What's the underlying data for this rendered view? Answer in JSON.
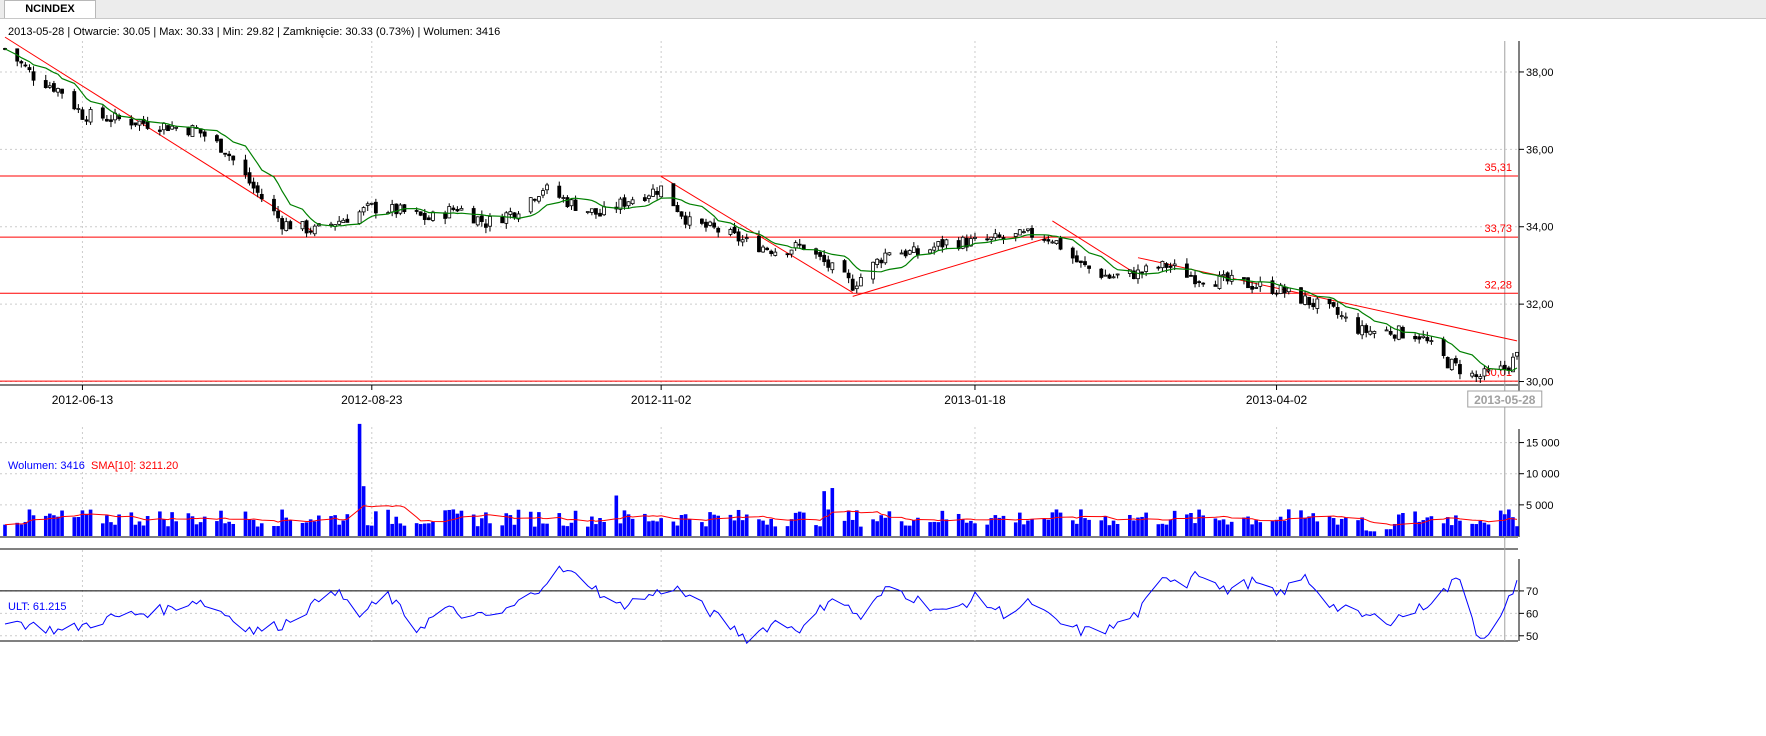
{
  "tab": {
    "label": "NCINDEX"
  },
  "header": {
    "info": "2013-05-28 | Otwarcie: 30.05 | Max: 30.33 | Min: 29.82 | Zamknięcie: 30.33 (0.73%)  | Wolumen: 3416"
  },
  "colors": {
    "candle": "#000000",
    "sma": "#008000",
    "trend": "#ff0000",
    "volume": "#0000ff",
    "vol_sma": "#ff0000",
    "ult": "#0000ff",
    "grid": "#cccccc",
    "level": "#ff0000"
  },
  "chart_data": [
    {
      "type": "candlestick",
      "title": "NCINDEX",
      "x_range": [
        "2012-05-25",
        "2013-05-31"
      ],
      "ylim": [
        29.6,
        38.8
      ],
      "y_ticks": [
        "38,00",
        "36,00",
        "34,00",
        "32,00",
        "30,00"
      ],
      "x_ticks": [
        "2012-06-13",
        "2012-08-23",
        "2012-11-02",
        "2013-01-18",
        "2013-04-02"
      ],
      "current_date_label": "2013-05-28",
      "grid": true,
      "horizontal_levels": [
        {
          "value": 35.31,
          "label": "35,31"
        },
        {
          "value": 33.73,
          "label": "33,73"
        },
        {
          "value": 32.28,
          "label": "32,28"
        },
        {
          "value": 30.01,
          "label": "30,01"
        }
      ],
      "trendlines": [
        {
          "from": [
            "2012-05-25",
            38.9
          ],
          "to": [
            "2012-08-09",
            33.85
          ]
        },
        {
          "from": [
            "2012-11-02",
            35.3
          ],
          "to": [
            "2012-12-19",
            32.3
          ]
        },
        {
          "from": [
            "2012-12-19",
            32.2
          ],
          "to": [
            "2013-02-06",
            33.75
          ]
        },
        {
          "from": [
            "2013-02-06",
            34.15
          ],
          "to": [
            "2013-02-27",
            32.75
          ]
        },
        {
          "from": [
            "2013-02-27",
            33.2
          ],
          "to": [
            "2013-05-31",
            31.05
          ]
        }
      ],
      "close_anchors": [
        [
          "2012-05-25",
          38.6
        ],
        [
          "2012-06-01",
          37.9
        ],
        [
          "2012-06-08",
          37.5
        ],
        [
          "2012-06-13",
          36.9
        ],
        [
          "2012-06-20",
          36.8
        ],
        [
          "2012-06-27",
          36.7
        ],
        [
          "2012-07-04",
          36.6
        ],
        [
          "2012-07-11",
          36.5
        ],
        [
          "2012-07-18",
          36.0
        ],
        [
          "2012-07-25",
          35.0
        ],
        [
          "2012-08-01",
          34.1
        ],
        [
          "2012-08-09",
          33.9
        ],
        [
          "2012-08-16",
          34.2
        ],
        [
          "2012-08-23",
          34.5
        ],
        [
          "2012-08-30",
          34.4
        ],
        [
          "2012-09-06",
          34.2
        ],
        [
          "2012-09-13",
          34.5
        ],
        [
          "2012-09-20",
          34.1
        ],
        [
          "2012-09-27",
          34.4
        ],
        [
          "2012-10-04",
          35.0
        ],
        [
          "2012-10-11",
          34.6
        ],
        [
          "2012-10-18",
          34.3
        ],
        [
          "2012-10-25",
          34.7
        ],
        [
          "2012-11-02",
          35.0
        ],
        [
          "2012-11-09",
          34.1
        ],
        [
          "2012-11-16",
          33.9
        ],
        [
          "2012-11-23",
          33.6
        ],
        [
          "2012-11-30",
          33.4
        ],
        [
          "2012-12-07",
          33.5
        ],
        [
          "2012-12-14",
          32.9
        ],
        [
          "2012-12-19",
          32.5
        ],
        [
          "2012-12-28",
          33.4
        ],
        [
          "2013-01-04",
          33.3
        ],
        [
          "2013-01-11",
          33.6
        ],
        [
          "2013-01-18",
          33.6
        ],
        [
          "2013-01-25",
          33.7
        ],
        [
          "2013-02-01",
          33.8
        ],
        [
          "2013-02-06",
          33.7
        ],
        [
          "2013-02-13",
          33.0
        ],
        [
          "2013-02-20",
          32.7
        ],
        [
          "2013-02-27",
          32.8
        ],
        [
          "2013-03-06",
          33.0
        ],
        [
          "2013-03-13",
          32.7
        ],
        [
          "2013-03-20",
          32.6
        ],
        [
          "2013-03-27",
          32.5
        ],
        [
          "2013-04-02",
          32.4
        ],
        [
          "2013-04-09",
          32.1
        ],
        [
          "2013-04-16",
          31.8
        ],
        [
          "2013-04-23",
          31.3
        ],
        [
          "2013-04-30",
          31.3
        ],
        [
          "2013-05-07",
          31.2
        ],
        [
          "2013-05-14",
          30.5
        ],
        [
          "2013-05-21",
          30.1
        ],
        [
          "2013-05-28",
          30.33
        ],
        [
          "2013-05-31",
          30.65
        ]
      ],
      "last_candle": {
        "date": "2013-05-28",
        "open": 30.05,
        "high": 30.33,
        "low": 29.82,
        "close": 30.33
      }
    },
    {
      "type": "bar",
      "series": [
        {
          "name": "Wolumen",
          "last": "3416"
        },
        {
          "name": "SMA[10]",
          "last": "3211.20"
        }
      ],
      "label": "Wolumen: 3416",
      "sma_label": "SMA[10]: 3211.20",
      "ylim": [
        0,
        17500
      ],
      "y_ticks": [
        "15 000",
        "10 000",
        "5 000"
      ],
      "spikes": [
        [
          "2012-08-20",
          18000
        ],
        [
          "2012-08-21",
          8000
        ],
        [
          "2012-12-12",
          7200
        ],
        [
          "2012-12-14",
          7700
        ],
        [
          "2012-10-22",
          6500
        ]
      ],
      "grid": true
    },
    {
      "type": "line",
      "series": [
        {
          "name": "ULT",
          "last": "61.215"
        }
      ],
      "label": "ULT: 61.215",
      "ylim": [
        45,
        82
      ],
      "y_ticks": [
        "70",
        "60",
        "50"
      ],
      "ref_line": 70,
      "anchors": [
        [
          "2012-05-25",
          57
        ],
        [
          "2012-06-08",
          52
        ],
        [
          "2012-06-20",
          58
        ],
        [
          "2012-07-04",
          62
        ],
        [
          "2012-07-11",
          66
        ],
        [
          "2012-07-18",
          60
        ],
        [
          "2012-07-25",
          52
        ],
        [
          "2012-08-01",
          55
        ],
        [
          "2012-08-09",
          64
        ],
        [
          "2012-08-13",
          72
        ],
        [
          "2012-08-20",
          59
        ],
        [
          "2012-08-27",
          68
        ],
        [
          "2012-09-03",
          53
        ],
        [
          "2012-09-10",
          62
        ],
        [
          "2012-09-17",
          58
        ],
        [
          "2012-09-24",
          60
        ],
        [
          "2012-10-01",
          68
        ],
        [
          "2012-10-08",
          80
        ],
        [
          "2012-10-15",
          74
        ],
        [
          "2012-10-22",
          63
        ],
        [
          "2012-10-29",
          67
        ],
        [
          "2012-11-05",
          72
        ],
        [
          "2012-11-09",
          67
        ],
        [
          "2012-11-16",
          58
        ],
        [
          "2012-11-23",
          49
        ],
        [
          "2012-11-30",
          56
        ],
        [
          "2012-12-07",
          53
        ],
        [
          "2012-12-14",
          68
        ],
        [
          "2012-12-21",
          58
        ],
        [
          "2012-12-28",
          72
        ],
        [
          "2013-01-04",
          66
        ],
        [
          "2013-01-11",
          60
        ],
        [
          "2013-01-18",
          67
        ],
        [
          "2013-01-25",
          60
        ],
        [
          "2013-02-01",
          65
        ],
        [
          "2013-02-06",
          57
        ],
        [
          "2013-02-13",
          52
        ],
        [
          "2013-02-20",
          53
        ],
        [
          "2013-02-27",
          60
        ],
        [
          "2013-03-06",
          77
        ],
        [
          "2013-03-11",
          73
        ],
        [
          "2013-03-13",
          80
        ],
        [
          "2013-03-20",
          70
        ],
        [
          "2013-03-27",
          74
        ],
        [
          "2013-04-02",
          68
        ],
        [
          "2013-04-09",
          76
        ],
        [
          "2013-04-16",
          63
        ],
        [
          "2013-04-23",
          59
        ],
        [
          "2013-04-30",
          57
        ],
        [
          "2013-05-07",
          62
        ],
        [
          "2013-05-14",
          71
        ],
        [
          "2013-05-17",
          77
        ],
        [
          "2013-05-21",
          52
        ],
        [
          "2013-05-24",
          49
        ],
        [
          "2013-05-28",
          61.2
        ],
        [
          "2013-05-31",
          75
        ]
      ],
      "grid": true
    }
  ]
}
